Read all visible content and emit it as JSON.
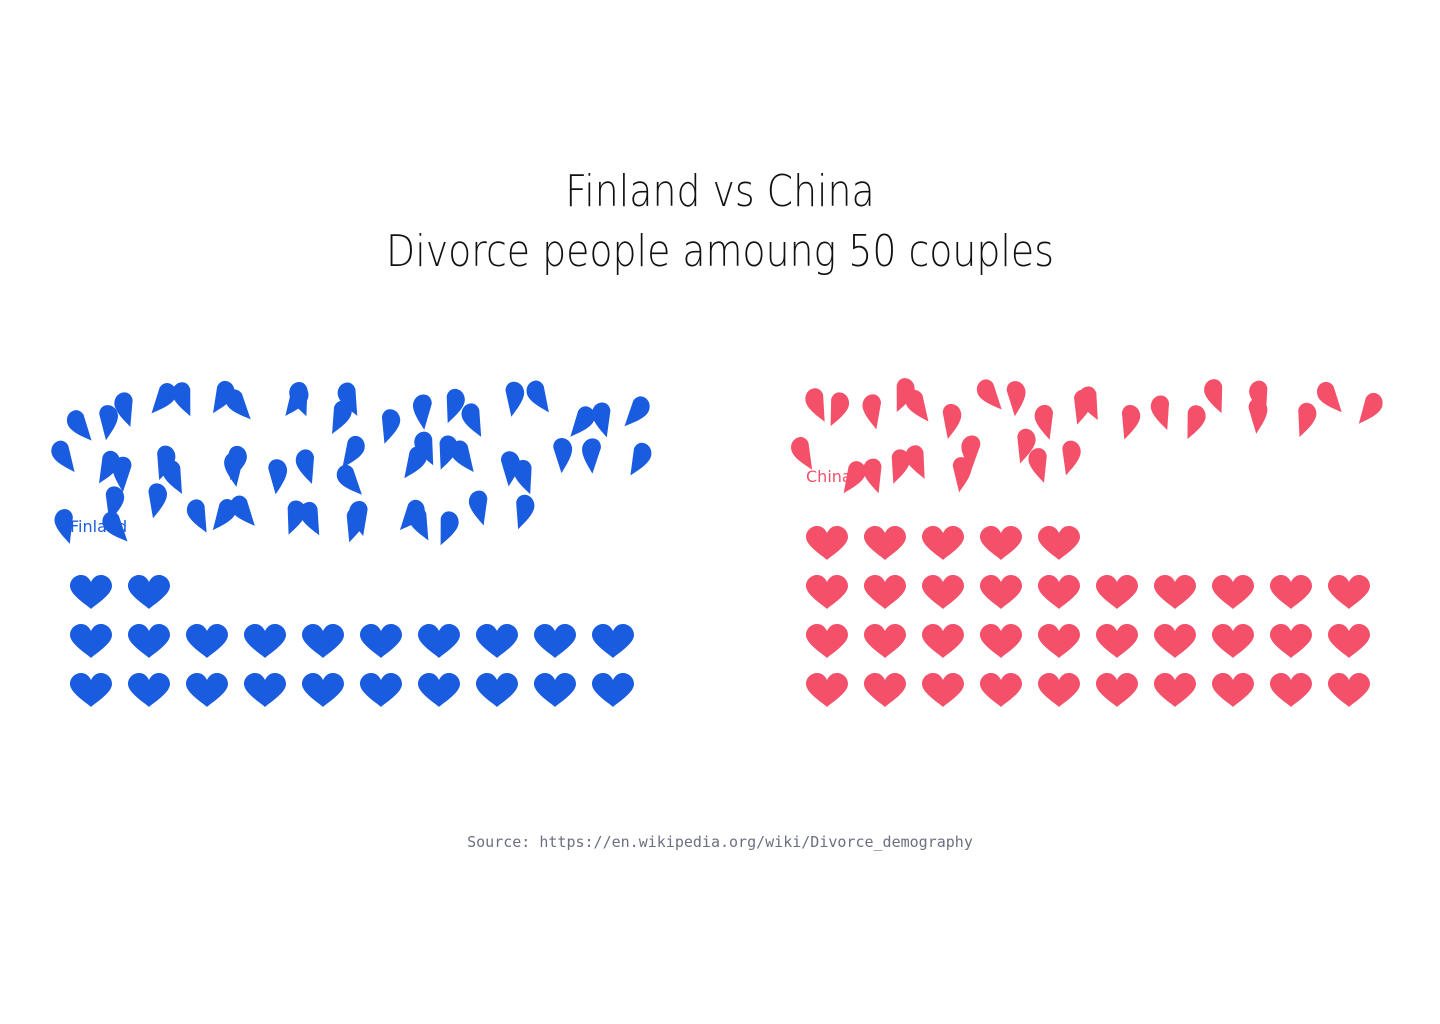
{
  "chart_data": {
    "type": "pictogram",
    "title_lines": [
      "Finland vs China",
      "Divorce people amoung 50 couples"
    ],
    "unit": "couples",
    "total_per_country": 50,
    "icon_intact": "heart-icon",
    "icon_broken": "broken-heart-icon",
    "series": [
      {
        "name": "Finland",
        "color": "#1a5ce0",
        "divorced": 28,
        "together": 22
      },
      {
        "name": "China",
        "color": "#f5506a",
        "divorced": 15,
        "together": 35
      }
    ]
  },
  "source": "Source: https://en.wikipedia.org/wiki/Divorce_demography"
}
